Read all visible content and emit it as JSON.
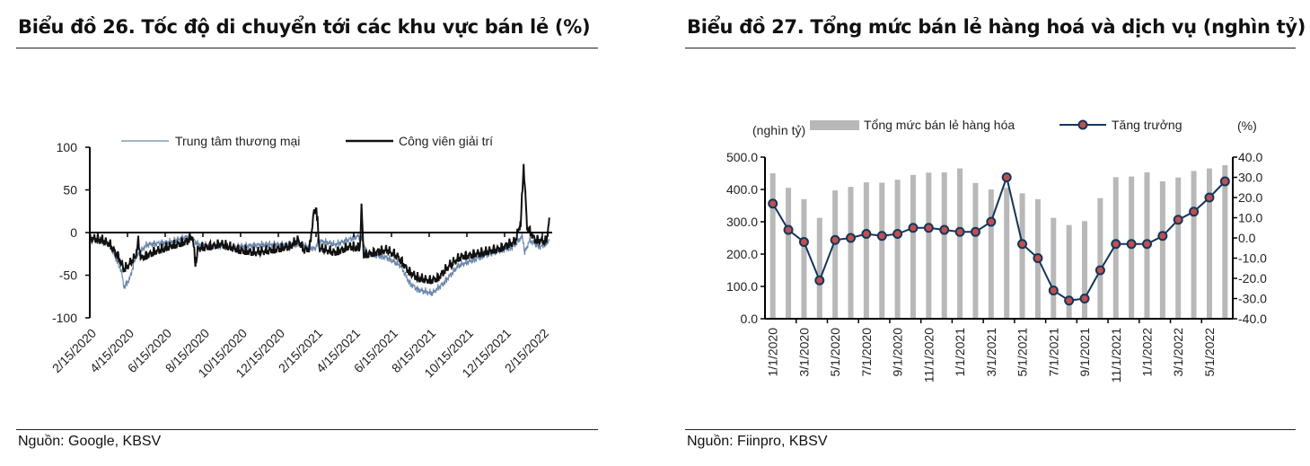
{
  "left": {
    "title": "Biểu đồ 26. Tốc độ di chuyển tới các khu vực bán lẻ (%)",
    "source": "Nguồn:  Google, KBSV"
  },
  "right": {
    "title": "Biểu đồ 27. Tổng mức bán lẻ hàng hoá và dịch vụ (nghìn tỷ)",
    "source": "Nguồn:  Fiinpro, KBSV"
  },
  "chart_data": [
    {
      "type": "line",
      "title": "Biểu đồ 26. Tốc độ di chuyển tới các khu vực bán lẻ (%)",
      "x_unit": "days since 2/15/2020",
      "ylim": [
        -100,
        100
      ],
      "yticks": [
        100,
        50,
        0,
        -50,
        -100
      ],
      "xtick_labels": [
        "2/15/2020",
        "4/15/2020",
        "6/15/2020",
        "8/15/2020",
        "10/15/2020",
        "12/15/2020",
        "2/15/2021",
        "4/15/2021",
        "6/15/2021",
        "8/15/2021",
        "10/15/2021",
        "12/15/2021",
        "2/15/2022"
      ],
      "legend_position": "top",
      "series": [
        {
          "name": "Trung tâm thương mại",
          "color": "#6a86a8",
          "points": [
            [
              0,
              -8
            ],
            [
              35,
              -15
            ],
            [
              55,
              -45
            ],
            [
              60,
              -65
            ],
            [
              70,
              -55
            ],
            [
              80,
              -30
            ],
            [
              100,
              -15
            ],
            [
              140,
              -12
            ],
            [
              175,
              -5
            ],
            [
              190,
              -15
            ],
            [
              250,
              -18
            ],
            [
              300,
              -15
            ],
            [
              370,
              -15
            ],
            [
              395,
              -20
            ],
            [
              400,
              -10
            ],
            [
              430,
              -15
            ],
            [
              470,
              -5
            ],
            [
              478,
              -10
            ],
            [
              485,
              -25
            ],
            [
              520,
              -30
            ],
            [
              545,
              -40
            ],
            [
              560,
              -60
            ],
            [
              575,
              -68
            ],
            [
              600,
              -72
            ],
            [
              620,
              -60
            ],
            [
              645,
              -40
            ],
            [
              690,
              -28
            ],
            [
              740,
              -18
            ],
            [
              758,
              -5
            ],
            [
              762,
              -25
            ],
            [
              770,
              -10
            ],
            [
              790,
              -18
            ],
            [
              805,
              -10
            ]
          ]
        },
        {
          "name": "Công viên giải trí",
          "color": "#111111",
          "points": [
            [
              0,
              -8
            ],
            [
              20,
              -10
            ],
            [
              35,
              -15
            ],
            [
              50,
              -30
            ],
            [
              60,
              -45
            ],
            [
              70,
              -38
            ],
            [
              80,
              -30
            ],
            [
              85,
              -12
            ],
            [
              90,
              -32
            ],
            [
              110,
              -25
            ],
            [
              140,
              -18
            ],
            [
              170,
              -12
            ],
            [
              180,
              -6
            ],
            [
              185,
              -38
            ],
            [
              190,
              -20
            ],
            [
              210,
              -18
            ],
            [
              230,
              -15
            ],
            [
              260,
              -22
            ],
            [
              290,
              -25
            ],
            [
              320,
              -22
            ],
            [
              350,
              -18
            ],
            [
              365,
              -10
            ],
            [
              375,
              -22
            ],
            [
              385,
              -20
            ],
            [
              392,
              20
            ],
            [
              397,
              28
            ],
            [
              402,
              -20
            ],
            [
              430,
              -25
            ],
            [
              455,
              -18
            ],
            [
              473,
              -20
            ],
            [
              476,
              27
            ],
            [
              480,
              -28
            ],
            [
              500,
              -25
            ],
            [
              520,
              -22
            ],
            [
              540,
              -30
            ],
            [
              560,
              -48
            ],
            [
              575,
              -55
            ],
            [
              595,
              -58
            ],
            [
              610,
              -55
            ],
            [
              630,
              -40
            ],
            [
              650,
              -30
            ],
            [
              690,
              -25
            ],
            [
              720,
              -20
            ],
            [
              745,
              -12
            ],
            [
              755,
              10
            ],
            [
              760,
              78
            ],
            [
              766,
              5
            ],
            [
              780,
              -10
            ],
            [
              800,
              -12
            ],
            [
              805,
              15
            ]
          ]
        }
      ]
    },
    {
      "type": "bar+line",
      "title": "Biểu đồ 27. Tổng mức bán lẻ hàng hoá và dịch vụ (nghìn tỷ)",
      "ylabel_left": "(nghìn tỷ)",
      "ylabel_right": "(%)",
      "ylim_left": [
        0,
        500
      ],
      "ylim_right": [
        -40,
        40
      ],
      "yticks_left": [
        "500.0",
        "400.0",
        "300.0",
        "200.0",
        "100.0",
        "0.0"
      ],
      "yticks_right": [
        "40.0",
        "30.0",
        "20.0",
        "10.0",
        "0.0",
        "-10.0",
        "-20.0",
        "-30.0",
        "-40.0"
      ],
      "xtick_labels": [
        "1/1/2020",
        "3/1/2020",
        "5/1/2020",
        "7/1/2020",
        "9/1/2020",
        "11/1/2020",
        "1/1/2021",
        "3/1/2021",
        "5/1/2021",
        "7/1/2021",
        "9/1/2021",
        "11/1/2021",
        "1/1/2022",
        "3/1/2022",
        "5/1/2022"
      ],
      "legend_position": "top",
      "bars": {
        "name": "Tổng mức bán lẻ hàng hóa",
        "color": "#b8b8b8",
        "values": [
          450,
          405,
          370,
          312,
          397,
          408,
          422,
          421,
          430,
          445,
          452,
          453,
          465,
          420,
          400,
          405,
          388,
          370,
          312,
          290,
          302,
          373,
          438,
          440,
          453,
          425,
          437,
          457,
          465,
          475
        ]
      },
      "line": {
        "name": "Tăng trưởng",
        "color": "#13365c",
        "marker_color": "#c0504d",
        "values": [
          17,
          4,
          -2,
          -21,
          -1,
          0,
          2,
          1,
          2,
          5,
          5,
          4,
          3,
          3,
          8,
          30,
          -3,
          -10,
          -26,
          -31,
          -30,
          -16,
          -3,
          -3,
          -3,
          1,
          9,
          13,
          20,
          28
        ]
      }
    }
  ]
}
